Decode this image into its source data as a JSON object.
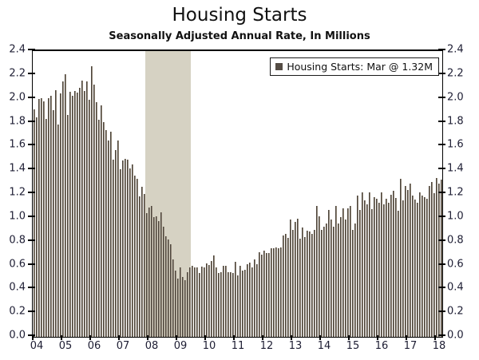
{
  "chart_data": {
    "type": "bar",
    "title": "Housing Starts",
    "subtitle": "Seasonally Adjusted Annual Rate, In Millions",
    "legend_label": "Housing Starts: Mar @ 1.32M",
    "unit": "millions",
    "x_start": "2004-01",
    "x_end": "2018-03",
    "ylim": [
      0.0,
      2.4
    ],
    "ytick_step": 0.2,
    "ytick_labels": [
      "0.0",
      "0.2",
      "0.4",
      "0.6",
      "0.8",
      "1.0",
      "1.2",
      "1.4",
      "1.6",
      "1.8",
      "2.0",
      "2.2",
      "2.4"
    ],
    "xtick_labels": [
      "04",
      "05",
      "06",
      "07",
      "08",
      "09",
      "10",
      "11",
      "12",
      "13",
      "14",
      "15",
      "16",
      "17",
      "18"
    ],
    "recession_shading": {
      "start": "2007-12",
      "end": "2009-06"
    },
    "legend_position": "top-right",
    "grid": false,
    "series": [
      {
        "name": "Housing Starts",
        "values": [
          1.911,
          1.846,
          1.998,
          2.003,
          1.981,
          1.828,
          2.002,
          2.024,
          1.905,
          2.072,
          1.782,
          2.042,
          2.144,
          2.207,
          1.864,
          2.061,
          2.025,
          2.068,
          2.054,
          2.095,
          2.151,
          2.065,
          2.147,
          1.994,
          2.273,
          2.119,
          1.969,
          1.821,
          1.942,
          1.802,
          1.737,
          1.65,
          1.72,
          1.491,
          1.57,
          1.649,
          1.409,
          1.48,
          1.495,
          1.49,
          1.415,
          1.448,
          1.354,
          1.33,
          1.183,
          1.264,
          1.197,
          1.037,
          1.084,
          1.103,
          1.005,
          1.013,
          0.973,
          1.046,
          0.923,
          0.844,
          0.82,
          0.777,
          0.652,
          0.56,
          0.49,
          0.582,
          0.505,
          0.478,
          0.54,
          0.585,
          0.594,
          0.586,
          0.585,
          0.534,
          0.588,
          0.581,
          0.614,
          0.604,
          0.636,
          0.687,
          0.583,
          0.536,
          0.546,
          0.599,
          0.594,
          0.543,
          0.545,
          0.539,
          0.63,
          0.517,
          0.6,
          0.554,
          0.561,
          0.608,
          0.623,
          0.585,
          0.65,
          0.61,
          0.711,
          0.694,
          0.723,
          0.706,
          0.706,
          0.747,
          0.744,
          0.754,
          0.746,
          0.749,
          0.854,
          0.863,
          0.834,
          0.983,
          0.898,
          0.969,
          0.994,
          0.826,
          0.919,
          0.835,
          0.891,
          0.885,
          0.863,
          0.899,
          1.101,
          1.01,
          0.897,
          0.928,
          0.95,
          1.063,
          0.984,
          0.927,
          1.098,
          0.953,
          1.009,
          1.079,
          0.984,
          1.081,
          1.101,
          0.9,
          0.954,
          1.19,
          1.067,
          1.213,
          1.147,
          1.111,
          1.213,
          1.071,
          1.171,
          1.16,
          1.128,
          1.213,
          1.113,
          1.161,
          1.128,
          1.195,
          1.226,
          1.168,
          1.062,
          1.328,
          1.149,
          1.268,
          1.236,
          1.288,
          1.189,
          1.154,
          1.129,
          1.217,
          1.185,
          1.172,
          1.158,
          1.265,
          1.303,
          1.21,
          1.334,
          1.29,
          1.319
        ]
      }
    ],
    "colors": {
      "bar_dark": "#4c443b",
      "bar_light": "#8e8476",
      "legend_swatch": "#554d45",
      "recession_band": "#d6d2c3",
      "axis_text": "#1d1d33",
      "frame": "#000000"
    }
  }
}
